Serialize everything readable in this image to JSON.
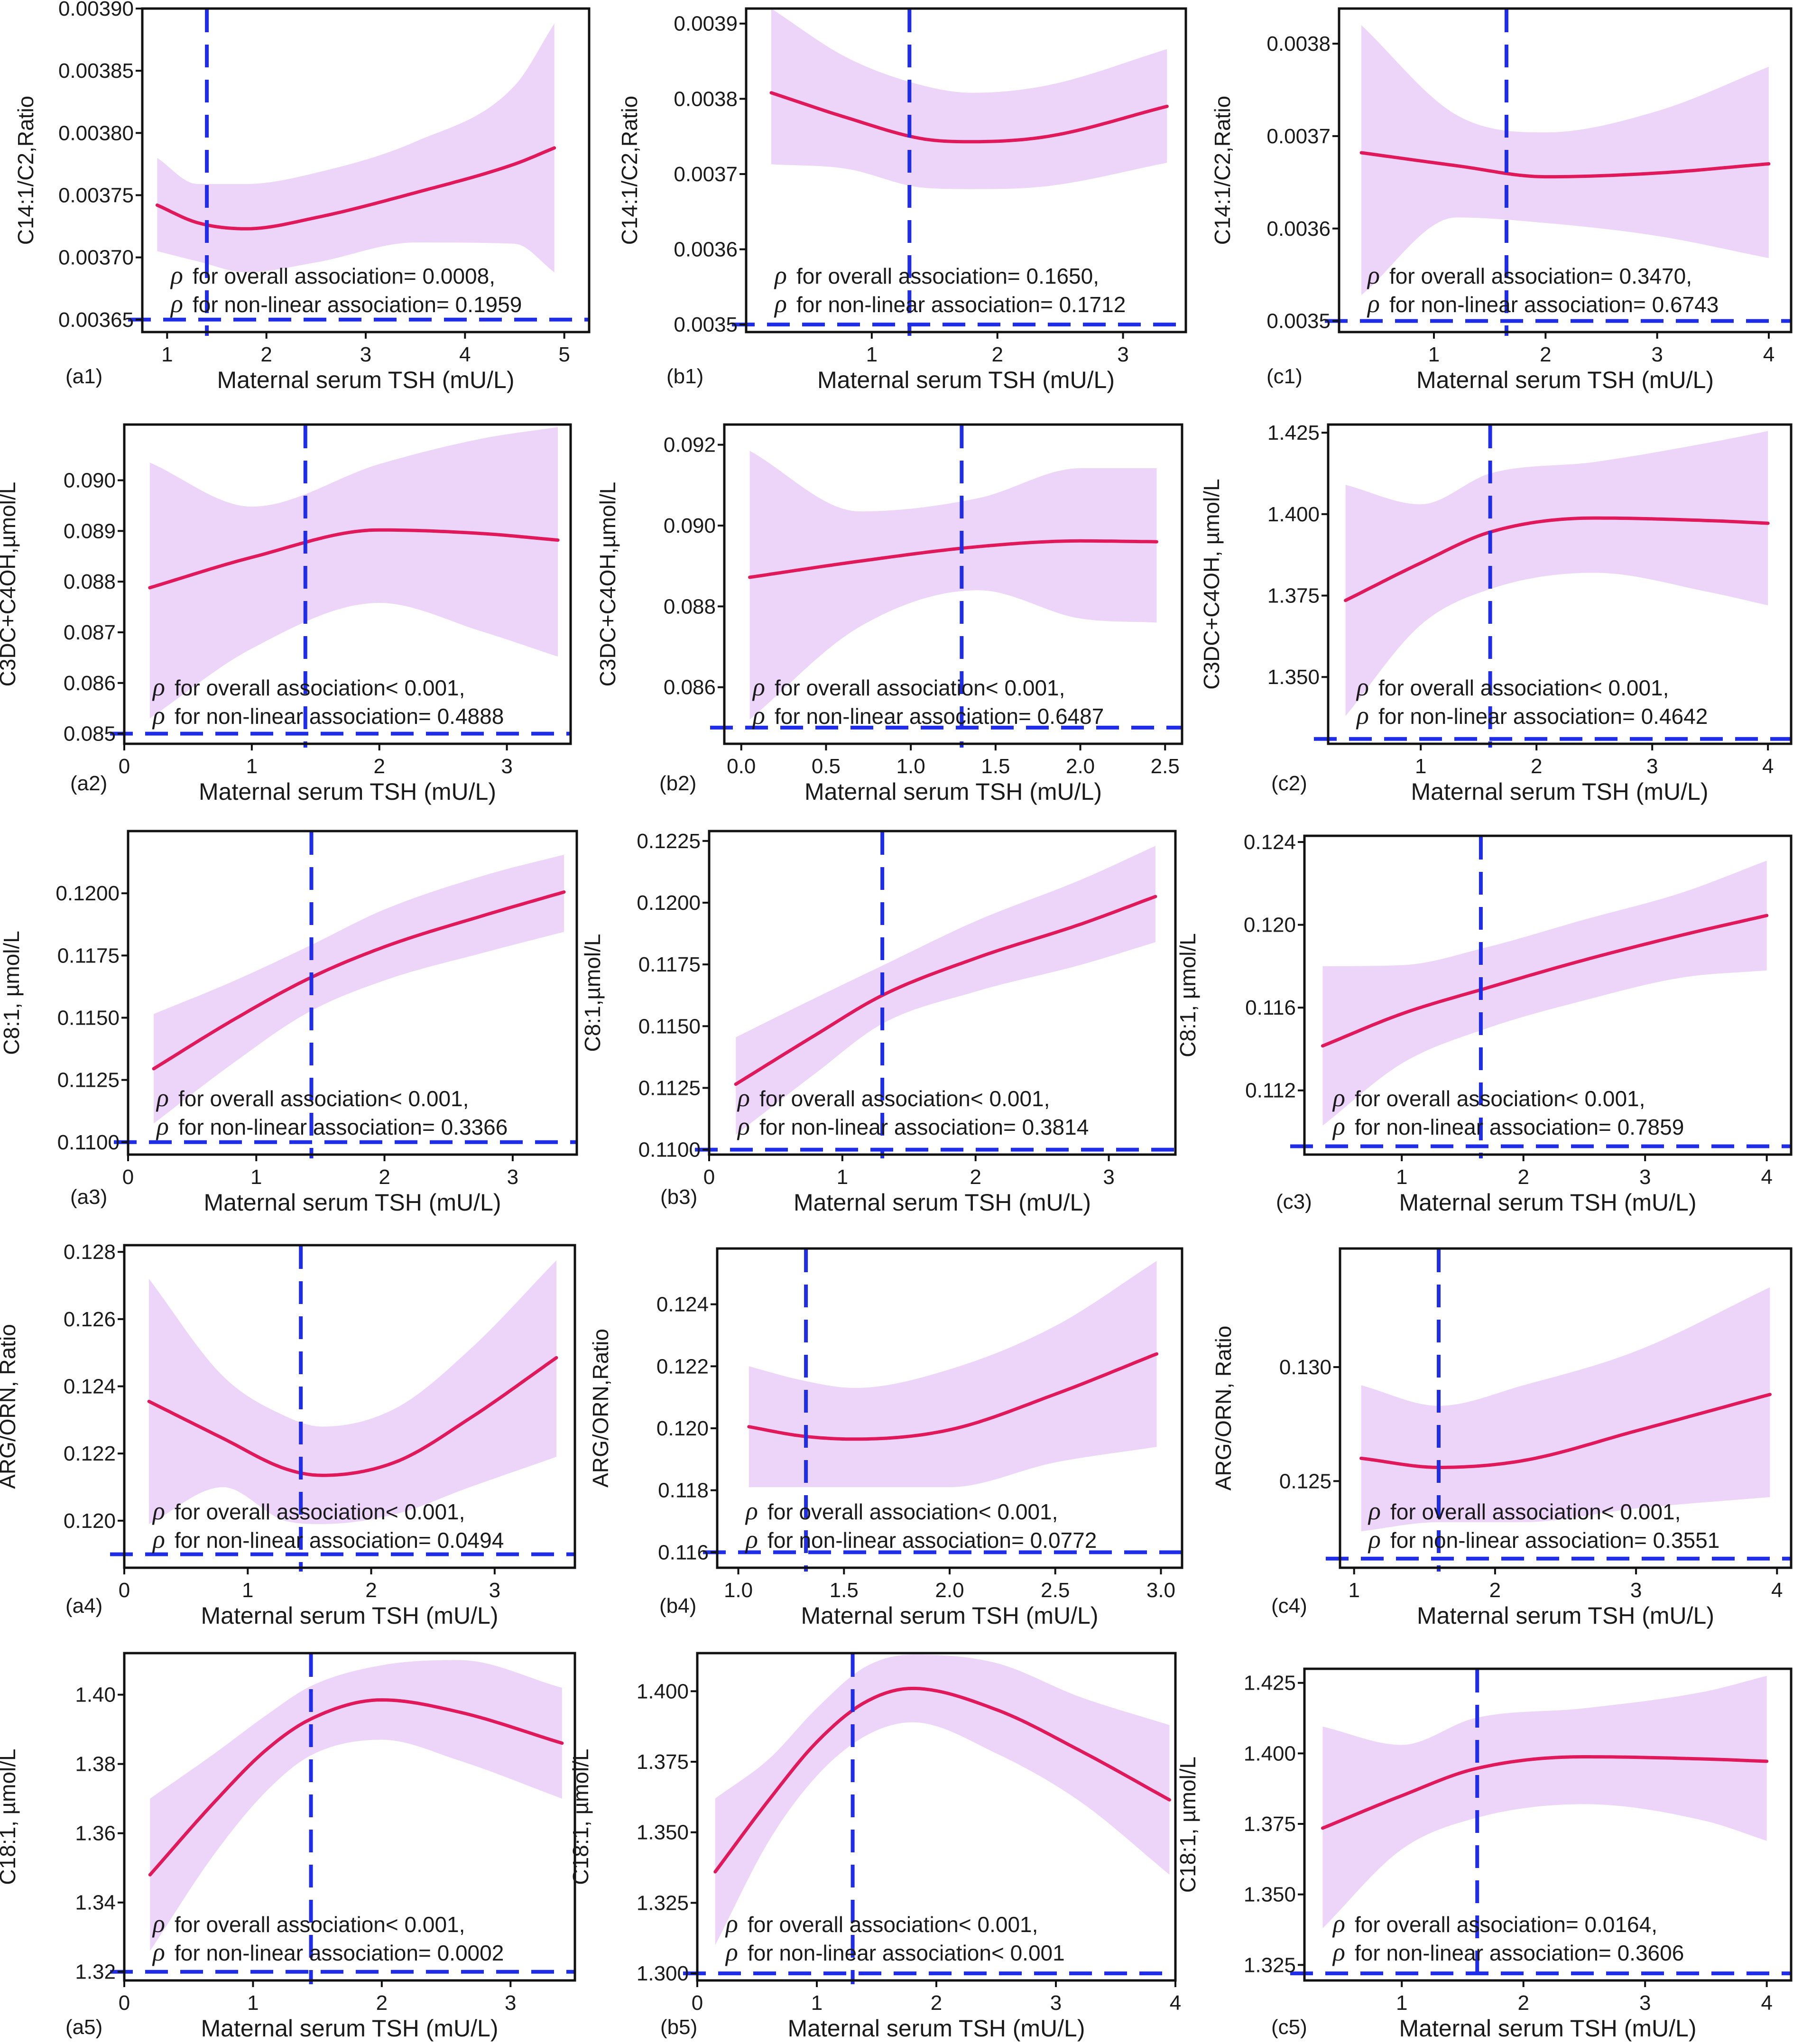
{
  "figure": {
    "colors": {
      "band": "#edd5fa",
      "curve": "#e0195a",
      "reference_line": "#1f2ee6",
      "frame": "#111111"
    },
    "p_symbol": "ρ",
    "icons": {
      "p_symbol": "rho-symbol"
    }
  },
  "chart_data": [
    {
      "id": "a1",
      "type": "line",
      "panel_label": "(a1)",
      "xlabel": "Maternal serum TSH (mU/L)",
      "ylabel": "C14:1/C2,Ratio",
      "xlim": [
        0.75,
        5.25
      ],
      "ylim": [
        0.00364,
        0.0039
      ],
      "xticks": [
        1,
        2,
        3,
        4,
        5
      ],
      "xtick_labels": [
        "1",
        "2",
        "3",
        "4",
        "5"
      ],
      "yticks": [
        0.00365,
        0.0037,
        0.00375,
        0.0038,
        0.00385,
        0.0039
      ],
      "ytick_labels": [
        "0.00365",
        "0.00370",
        "0.00375",
        "0.00380",
        "0.00385",
        "0.00390"
      ],
      "x": [
        0.9,
        1.3,
        1.8,
        2.5,
        3.5,
        4.5,
        4.9
      ],
      "y": [
        0.003742,
        0.003728,
        0.003723,
        0.003732,
        0.003752,
        0.003775,
        0.003788
      ],
      "upper": [
        0.00378,
        0.003759,
        0.003759,
        0.003768,
        0.003793,
        0.003838,
        0.003888
      ],
      "lower": [
        0.003705,
        0.003697,
        0.003688,
        0.003696,
        0.003712,
        0.003711,
        0.003688
      ],
      "vline_x": 1.4,
      "hline_y": 0.00365,
      "p_overall": "for overall association= 0.0008,",
      "p_nonlinear": "for non-linear association= 0.1959"
    },
    {
      "id": "b1",
      "type": "line",
      "panel_label": "(b1)",
      "xlabel": "Maternal serum TSH (mU/L)",
      "ylabel": "C14:1/C2,Ratio",
      "xlim": [
        0,
        3.5
      ],
      "ylim": [
        0.00349,
        0.00392
      ],
      "xticks": [
        1,
        2,
        3
      ],
      "xtick_labels": [
        "1",
        "2",
        "3"
      ],
      "yticks": [
        0.0035,
        0.0036,
        0.0037,
        0.0038,
        0.0039
      ],
      "ytick_labels": [
        "0.0035",
        "0.0036",
        "0.0037",
        "0.0038",
        "0.0039"
      ],
      "x": [
        0.2,
        0.8,
        1.4,
        1.8,
        2.4,
        3.35
      ],
      "y": [
        0.003808,
        0.003775,
        0.003747,
        0.003743,
        0.00375,
        0.00379
      ],
      "upper": [
        0.00392,
        0.003855,
        0.003818,
        0.003808,
        0.003818,
        0.003866
      ],
      "lower": [
        0.003713,
        0.003707,
        0.003682,
        0.00368,
        0.003684,
        0.003715
      ],
      "vline_x": 1.3,
      "hline_y": 0.0035,
      "p_overall": "for overall association= 0.1650,",
      "p_nonlinear": "for non-linear association= 0.1712"
    },
    {
      "id": "c1",
      "type": "line",
      "panel_label": "(c1)",
      "xlabel": "Maternal serum TSH (mU/L)",
      "ylabel": "C14:1/C2,Ratio",
      "xlim": [
        0.15,
        4.2
      ],
      "ylim": [
        0.003488,
        0.003838
      ],
      "xticks": [
        1,
        2,
        3,
        4
      ],
      "xtick_labels": [
        "1",
        "2",
        "3",
        "4"
      ],
      "yticks": [
        0.0035,
        0.0036,
        0.0037,
        0.0038
      ],
      "ytick_labels": [
        "0.0035",
        "0.0036",
        "0.0037",
        "0.0038"
      ],
      "x": [
        0.35,
        1.2,
        2.0,
        3.0,
        4.0
      ],
      "y": [
        0.003682,
        0.003668,
        0.003656,
        0.00366,
        0.00367
      ],
      "upper": [
        0.00382,
        0.003723,
        0.003704,
        0.003727,
        0.003775
      ],
      "lower": [
        0.003528,
        0.003612,
        0.003606,
        0.003592,
        0.003568
      ],
      "vline_x": 1.65,
      "hline_y": 0.0035,
      "p_overall": "for overall association= 0.3470,",
      "p_nonlinear": "for non-linear association= 0.6743"
    },
    {
      "id": "a2",
      "type": "line",
      "panel_label": "(a2)",
      "xlabel": "Maternal serum TSH (mU/L)",
      "ylabel": "C3DC+C4OH,µmol/L",
      "xlim": [
        0,
        3.5
      ],
      "ylim": [
        0.0848,
        0.0911
      ],
      "xticks": [
        0,
        1,
        2,
        3
      ],
      "xtick_labels": [
        "0",
        "1",
        "2",
        "3"
      ],
      "yticks": [
        0.085,
        0.086,
        0.087,
        0.088,
        0.089,
        0.09
      ],
      "ytick_labels": [
        "0.085",
        "0.086",
        "0.087",
        "0.088",
        "0.089",
        "0.090"
      ],
      "x": [
        0.2,
        1.0,
        2.0,
        2.8,
        3.4
      ],
      "y": [
        0.08788,
        0.08848,
        0.08902,
        0.08895,
        0.08882
      ],
      "upper": [
        0.09035,
        0.08948,
        0.09032,
        0.09082,
        0.09105
      ],
      "lower": [
        0.0853,
        0.08668,
        0.08758,
        0.08702,
        0.08652
      ],
      "vline_x": 1.42,
      "hline_y": 0.085,
      "p_overall": "for overall association< 0.001,",
      "p_nonlinear": "for non-linear association= 0.4888"
    },
    {
      "id": "b2",
      "type": "line",
      "panel_label": "(b2)",
      "xlabel": "Maternal serum TSH (mU/L)",
      "ylabel": "C3DC+C4OH,µmol/L",
      "xlim": [
        -0.1,
        2.6
      ],
      "ylim": [
        0.0846,
        0.0925
      ],
      "xticks": [
        0,
        0.5,
        1,
        1.5,
        2,
        2.5
      ],
      "xtick_labels": [
        "0.0",
        "0.5",
        "1.0",
        "1.5",
        "2.0",
        "2.5"
      ],
      "yticks": [
        0.086,
        0.088,
        0.09,
        0.092
      ],
      "ytick_labels": [
        "0.086",
        "0.088",
        "0.090",
        "0.092"
      ],
      "x": [
        0.05,
        0.7,
        1.4,
        2.0,
        2.45
      ],
      "y": [
        0.08872,
        0.08912,
        0.08948,
        0.08962,
        0.0896
      ],
      "upper": [
        0.09185,
        0.09035,
        0.09068,
        0.09142,
        0.09142
      ],
      "lower": [
        0.0852,
        0.0875,
        0.0884,
        0.0877,
        0.0876
      ],
      "vline_x": 1.3,
      "hline_y": 0.085,
      "p_overall": "for overall association< 0.001,",
      "p_nonlinear": "for non-linear association= 0.6487"
    },
    {
      "id": "c2",
      "type": "line",
      "panel_label": "(c2)",
      "xlabel": "Maternal serum TSH (mU/L)",
      "ylabel": "C3DC+C4OH, µmol/L",
      "xlim": [
        0.2,
        4.2
      ],
      "ylim": [
        1.3295,
        1.4275
      ],
      "xticks": [
        1,
        2,
        3,
        4
      ],
      "xtick_labels": [
        "1",
        "2",
        "3",
        "4"
      ],
      "yticks": [
        1.35,
        1.375,
        1.4,
        1.425
      ],
      "ytick_labels": [
        "1.350",
        "1.375",
        "1.400",
        "1.425"
      ],
      "x": [
        0.35,
        1.0,
        1.6,
        2.5,
        3.5,
        4.0
      ],
      "y": [
        1.3735,
        1.385,
        1.3945,
        1.3988,
        1.398,
        1.3972
      ],
      "upper": [
        1.409,
        1.403,
        1.4125,
        1.416,
        1.422,
        1.4255
      ],
      "lower": [
        1.338,
        1.366,
        1.377,
        1.382,
        1.376,
        1.372
      ],
      "vline_x": 1.6,
      "hline_y": 1.331,
      "p_overall": "for overall association< 0.001,",
      "p_nonlinear": "for non-linear association= 0.4642"
    },
    {
      "id": "a3",
      "type": "line",
      "panel_label": "(a3)",
      "xlabel": "Maternal serum TSH (mU/L)",
      "ylabel": "C8:1, µmol/L",
      "xlim": [
        0,
        3.5
      ],
      "ylim": [
        0.1095,
        0.1225
      ],
      "xticks": [
        0,
        1,
        2,
        3
      ],
      "xtick_labels": [
        "0",
        "1",
        "2",
        "3"
      ],
      "yticks": [
        0.11,
        0.1125,
        0.115,
        0.1175,
        0.12
      ],
      "ytick_labels": [
        "0.1100",
        "0.1125",
        "0.1150",
        "0.1175",
        "0.1200"
      ],
      "x": [
        0.2,
        0.8,
        1.4,
        2.0,
        2.8,
        3.4
      ],
      "y": [
        0.11295,
        0.11485,
        0.11655,
        0.11785,
        0.11915,
        0.12005
      ],
      "upper": [
        0.11515,
        0.11642,
        0.11785,
        0.11935,
        0.12075,
        0.12155
      ],
      "lower": [
        0.11075,
        0.1131,
        0.1152,
        0.1165,
        0.11765,
        0.11845
      ],
      "vline_x": 1.43,
      "hline_y": 0.11,
      "p_overall": "for overall association< 0.001,",
      "p_nonlinear": "for non-linear association= 0.3366"
    },
    {
      "id": "b3",
      "type": "line",
      "panel_label": "(b3)",
      "xlabel": "Maternal serum TSH (mU/L)",
      "ylabel": "C8:1,µmol/L",
      "xlim": [
        0,
        3.5
      ],
      "ylim": [
        0.1098,
        0.1229
      ],
      "xticks": [
        0,
        1,
        2,
        3
      ],
      "xtick_labels": [
        "0",
        "1",
        "2",
        "3"
      ],
      "yticks": [
        0.11,
        0.1125,
        0.115,
        0.1175,
        0.12,
        0.1225
      ],
      "ytick_labels": [
        "0.1100",
        "0.1125",
        "0.1150",
        "0.1175",
        "0.1200",
        "0.1225"
      ],
      "x": [
        0.2,
        0.8,
        1.3,
        2.0,
        2.8,
        3.35
      ],
      "y": [
        0.11265,
        0.11465,
        0.11625,
        0.11775,
        0.11915,
        0.12025
      ],
      "upper": [
        0.11455,
        0.11615,
        0.11745,
        0.11925,
        0.12095,
        0.1223
      ],
      "lower": [
        0.1106,
        0.1131,
        0.1151,
        0.1164,
        0.1175,
        0.1184
      ],
      "vline_x": 1.3,
      "hline_y": 0.11,
      "p_overall": "for overall association< 0.001,",
      "p_nonlinear": "for non-linear association= 0.3814"
    },
    {
      "id": "c3",
      "type": "line",
      "panel_label": "(c3)",
      "xlabel": "Maternal serum TSH (mU/L)",
      "ylabel": "C8:1, µmol/L",
      "xlim": [
        0.2,
        4.2
      ],
      "ylim": [
        0.1089,
        0.1243
      ],
      "xticks": [
        1,
        2,
        3,
        4
      ],
      "xtick_labels": [
        "1",
        "2",
        "3",
        "4"
      ],
      "yticks": [
        0.112,
        0.116,
        0.12,
        0.124
      ],
      "ytick_labels": [
        "0.112",
        "0.116",
        "0.120",
        "0.124"
      ],
      "x": [
        0.35,
        1.0,
        1.7,
        2.5,
        3.3,
        4.0
      ],
      "y": [
        0.11415,
        0.1157,
        0.11695,
        0.1183,
        0.1195,
        0.12045
      ],
      "upper": [
        0.118,
        0.11805,
        0.11892,
        0.12025,
        0.12155,
        0.1231
      ],
      "lower": [
        0.1103,
        0.1133,
        0.115,
        0.11635,
        0.11745,
        0.1178
      ],
      "vline_x": 1.65,
      "hline_y": 0.1093,
      "p_overall": "for overall association< 0.001,",
      "p_nonlinear": "for non-linear association= 0.7859"
    },
    {
      "id": "a4",
      "type": "line",
      "panel_label": "(a4)",
      "xlabel": "Maternal serum TSH (mU/L)",
      "ylabel": "ARG/ORN, Ratio",
      "xlim": [
        0,
        3.65
      ],
      "ylim": [
        0.1186,
        0.1282
      ],
      "xticks": [
        0,
        1,
        2,
        3
      ],
      "xtick_labels": [
        "0",
        "1",
        "2",
        "3"
      ],
      "yticks": [
        0.12,
        0.122,
        0.124,
        0.126,
        0.128
      ],
      "ytick_labels": [
        "0.120",
        "0.122",
        "0.124",
        "0.126",
        "0.128"
      ],
      "x": [
        0.2,
        0.8,
        1.3,
        1.6,
        2.2,
        2.8,
        3.5
      ],
      "y": [
        0.12355,
        0.12245,
        0.12155,
        0.12135,
        0.12175,
        0.12305,
        0.12485
      ],
      "upper": [
        0.1272,
        0.1243,
        0.12312,
        0.1228,
        0.12335,
        0.1251,
        0.12775
      ],
      "lower": [
        0.1199,
        0.121,
        0.12,
        0.1199,
        0.1202,
        0.121,
        0.1219
      ],
      "vline_x": 1.43,
      "hline_y": 0.119,
      "p_overall": "for overall association< 0.001,",
      "p_nonlinear": "for non-linear association= 0.0494"
    },
    {
      "id": "b4",
      "type": "line",
      "panel_label": "(b4)",
      "xlabel": "Maternal serum TSH (mU/L)",
      "ylabel": "ARG/ORN,Ratio",
      "xlim": [
        0.9,
        3.1
      ],
      "ylim": [
        0.1155,
        0.1258
      ],
      "xticks": [
        1,
        1.5,
        2,
        2.5,
        3
      ],
      "xtick_labels": [
        "1.0",
        "1.5",
        "2.0",
        "2.5",
        "3.0"
      ],
      "yticks": [
        0.116,
        0.118,
        0.12,
        0.122,
        0.124
      ],
      "ytick_labels": [
        "0.116",
        "0.118",
        "0.120",
        "0.122",
        "0.124"
      ],
      "x": [
        1.05,
        1.3,
        1.55,
        2.0,
        2.5,
        2.98
      ],
      "y": [
        0.12005,
        0.11975,
        0.11965,
        0.11995,
        0.1211,
        0.1224
      ],
      "upper": [
        0.122,
        0.12155,
        0.1213,
        0.1219,
        0.1233,
        0.1254
      ],
      "lower": [
        0.1181,
        0.1181,
        0.1181,
        0.1181,
        0.1189,
        0.1194
      ],
      "vline_x": 1.32,
      "hline_y": 0.116,
      "p_overall": "for overall association< 0.001,",
      "p_nonlinear": "for non-linear association= 0.0772"
    },
    {
      "id": "c4",
      "type": "line",
      "panel_label": "(c4)",
      "xlabel": "Maternal serum TSH (mU/L)",
      "ylabel": "ARG/ORN, Ratio",
      "xlim": [
        0.9,
        4.1
      ],
      "ylim": [
        0.1212,
        0.1352
      ],
      "xticks": [
        1,
        2,
        3,
        4
      ],
      "xtick_labels": [
        "1",
        "2",
        "3",
        "4"
      ],
      "yticks": [
        0.125,
        0.13
      ],
      "ytick_labels": [
        "0.125",
        "0.130"
      ],
      "x": [
        1.05,
        1.6,
        2.2,
        3.0,
        3.95
      ],
      "y": [
        0.126,
        0.1256,
        0.1259,
        0.1272,
        0.1288
      ],
      "upper": [
        0.1292,
        0.1283,
        0.1292,
        0.1307,
        0.1335
      ],
      "lower": [
        0.1228,
        0.1232,
        0.1232,
        0.1238,
        0.1243
      ],
      "vline_x": 1.6,
      "hline_y": 0.1216,
      "p_overall": "for overall association< 0.001,",
      "p_nonlinear": "for non-linear association= 0.3551"
    },
    {
      "id": "a5",
      "type": "line",
      "panel_label": "(a5)",
      "xlabel": "Maternal serum TSH (mU/L)",
      "ylabel": "C18:1, µmol/L",
      "xlim": [
        0,
        3.5
      ],
      "ylim": [
        1.3175,
        1.412
      ],
      "xticks": [
        0,
        1,
        2,
        3
      ],
      "xtick_labels": [
        "0",
        "1",
        "2",
        "3"
      ],
      "yticks": [
        1.32,
        1.34,
        1.36,
        1.38,
        1.4
      ],
      "ytick_labels": [
        "1.32",
        "1.34",
        "1.36",
        "1.38",
        "1.40"
      ],
      "x": [
        0.2,
        0.7,
        1.1,
        1.45,
        2.0,
        2.6,
        3.4
      ],
      "y": [
        1.348,
        1.369,
        1.384,
        1.393,
        1.3985,
        1.395,
        1.386
      ],
      "upper": [
        1.37,
        1.383,
        1.394,
        1.4025,
        1.4085,
        1.41,
        1.402
      ],
      "lower": [
        1.326,
        1.354,
        1.372,
        1.3825,
        1.387,
        1.381,
        1.37
      ],
      "vline_x": 1.45,
      "hline_y": 1.32,
      "p_overall": "for overall association< 0.001,",
      "p_nonlinear": "for non-linear association= 0.0002"
    },
    {
      "id": "b5",
      "type": "line",
      "panel_label": "(b5)",
      "xlabel": "Maternal serum TSH (mU/L)",
      "ylabel": "C18:1, µmol/L",
      "xlim": [
        0,
        4.0
      ],
      "ylim": [
        1.2975,
        1.4135
      ],
      "xticks": [
        0,
        1,
        2,
        3,
        4
      ],
      "xtick_labels": [
        "0",
        "1",
        "2",
        "3",
        "4"
      ],
      "yticks": [
        1.3,
        1.325,
        1.35,
        1.375,
        1.4
      ],
      "ytick_labels": [
        "1.300",
        "1.325",
        "1.350",
        "1.375",
        "1.400"
      ],
      "x": [
        0.15,
        0.6,
        1.0,
        1.4,
        1.8,
        2.5,
        3.2,
        3.95
      ],
      "y": [
        1.336,
        1.3615,
        1.382,
        1.396,
        1.401,
        1.3935,
        1.379,
        1.3615
      ],
      "upper": [
        1.362,
        1.376,
        1.394,
        1.4085,
        1.413,
        1.41,
        1.398,
        1.388
      ],
      "lower": [
        1.31,
        1.347,
        1.37,
        1.384,
        1.389,
        1.378,
        1.361,
        1.335
      ],
      "vline_x": 1.3,
      "hline_y": 1.3,
      "p_overall": "for overall association< 0.001,",
      "p_nonlinear": "for non-linear association< 0.001"
    },
    {
      "id": "c5",
      "type": "line",
      "panel_label": "(c5)",
      "xlabel": "Maternal serum TSH (mU/L)",
      "ylabel": "C18:1, µmol/L",
      "xlim": [
        0.2,
        4.2
      ],
      "ylim": [
        1.3195,
        1.43
      ],
      "xticks": [
        1,
        2,
        3,
        4
      ],
      "xtick_labels": [
        "1",
        "2",
        "3",
        "4"
      ],
      "yticks": [
        1.325,
        1.35,
        1.375,
        1.4,
        1.425
      ],
      "ytick_labels": [
        "1.325",
        "1.350",
        "1.375",
        "1.400",
        "1.425"
      ],
      "x": [
        0.35,
        1.0,
        1.6,
        2.5,
        3.5,
        4.0
      ],
      "y": [
        1.3735,
        1.385,
        1.3945,
        1.3988,
        1.398,
        1.3972
      ],
      "upper": [
        1.4095,
        1.403,
        1.4125,
        1.416,
        1.422,
        1.4275
      ],
      "lower": [
        1.338,
        1.366,
        1.377,
        1.382,
        1.376,
        1.369
      ],
      "vline_x": 1.62,
      "hline_y": 1.322,
      "p_overall": "for overall association= 0.0164,",
      "p_nonlinear": "for non-linear association= 0.3606"
    }
  ]
}
